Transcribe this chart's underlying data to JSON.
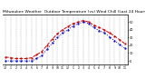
{
  "title": "Milwaukee Weather  Outdoor Temperature (vs) Wind Chill (Last 24 Hours)",
  "title_fontsize": 3.2,
  "background_color": "#ffffff",
  "plot_bg_color": "#ffffff",
  "grid_color": "#888888",
  "hours": [
    0,
    1,
    2,
    3,
    4,
    5,
    6,
    7,
    8,
    9,
    10,
    11,
    12,
    13,
    14,
    15,
    16,
    17,
    18,
    19,
    20,
    21,
    22,
    23
  ],
  "temp": [
    5,
    4,
    3,
    3,
    3,
    4,
    8,
    12,
    20,
    28,
    35,
    40,
    44,
    48,
    50,
    52,
    50,
    46,
    43,
    40,
    36,
    32,
    27,
    22
  ],
  "windchill": [
    0,
    0,
    0,
    0,
    0,
    0,
    3,
    7,
    15,
    23,
    30,
    36,
    40,
    45,
    48,
    50,
    48,
    43,
    39,
    36,
    31,
    26,
    21,
    16
  ],
  "temp_color": "#cc0000",
  "windchill_color": "#0000cc",
  "ylim": [
    -5,
    60
  ],
  "ytick_vals": [
    0,
    10,
    20,
    30,
    40,
    50
  ],
  "ytick_labels": [
    "0",
    "10",
    "20",
    "30",
    "40",
    "50"
  ],
  "xtick_labels": [
    "12",
    "1",
    "2",
    "3",
    "4",
    "5",
    "6",
    "7",
    "8",
    "9",
    "10",
    "11",
    "12",
    "1",
    "2",
    "3",
    "4",
    "5",
    "6",
    "7",
    "8",
    "9",
    "10",
    "11"
  ],
  "line_width": 0.7,
  "marker_size": 1.2,
  "fig_width": 1.6,
  "fig_height": 0.87,
  "dpi": 100
}
